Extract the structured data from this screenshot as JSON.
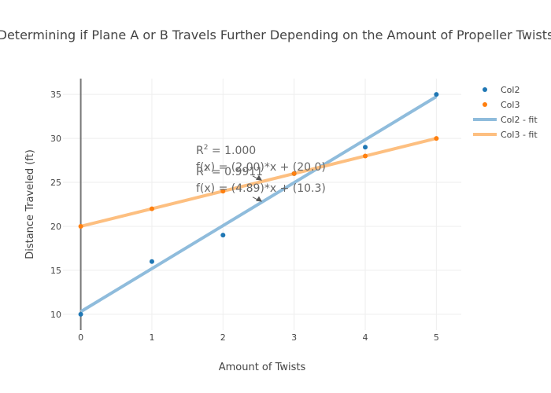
{
  "chart_data": {
    "type": "scatter",
    "title": "Determining if Plane A or B Travels Further Depending on the Amount of Propeller Twists",
    "xlabel": "Amount of Twists",
    "ylabel": "Distance Traveled (ft)",
    "xlim": [
      -0.25,
      5.35
    ],
    "ylim": [
      8.2,
      36.8
    ],
    "x_ticks": [
      0,
      1,
      2,
      3,
      4,
      5
    ],
    "y_ticks": [
      10,
      15,
      20,
      25,
      30,
      35
    ],
    "x_tick_labels": [
      "0",
      "1",
      "2",
      "3",
      "4",
      "5"
    ],
    "y_tick_labels": [
      "10",
      "15",
      "20",
      "25",
      "30",
      "35"
    ],
    "grid": true,
    "legend_position": "right",
    "series": [
      {
        "name": "Col2",
        "kind": "markers",
        "color": "#1f77b4",
        "x": [
          0,
          1,
          2,
          3,
          4,
          5
        ],
        "y": [
          10,
          16,
          19,
          26,
          29,
          35
        ]
      },
      {
        "name": "Col3",
        "kind": "markers",
        "color": "#ff7f0e",
        "x": [
          0,
          1,
          2,
          3,
          4,
          5
        ],
        "y": [
          20,
          22,
          24,
          26,
          28,
          30
        ]
      },
      {
        "name": "Col2 - fit",
        "kind": "line",
        "color": "#8fbcdc",
        "x": [
          0,
          5
        ],
        "y": [
          10.3,
          34.75
        ]
      },
      {
        "name": "Col3 - fit",
        "kind": "line",
        "color": "#fdbf80",
        "x": [
          0,
          5
        ],
        "y": [
          20.0,
          30.0
        ]
      }
    ],
    "annotations": [
      {
        "r2_prefix": "R",
        "r2_sup": "2",
        "r2_value": " = 1.000",
        "formula": "f(x) = (2.00)*x + (20.0)",
        "arrow_to": [
          2.55,
          25.2
        ]
      },
      {
        "r2_prefix": "R",
        "r2_sup": "2",
        "r2_value": " = 0.9911",
        "formula": "f(x) = (4.89)*x + (10.3)",
        "arrow_to": [
          2.55,
          22.8
        ]
      }
    ]
  }
}
